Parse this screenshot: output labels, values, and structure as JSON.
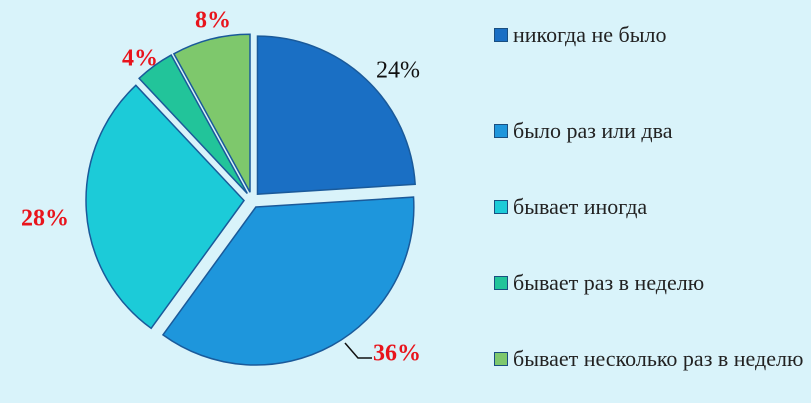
{
  "chart_data": {
    "type": "pie",
    "categories": [
      "никогда не было",
      "было раз или два",
      "бывает иногда",
      "бывает раз в неделю",
      "бывает несколько раз в неделю"
    ],
    "values": [
      24,
      36,
      28,
      4,
      8
    ],
    "value_labels": [
      "24%",
      "36%",
      "28%",
      "4%",
      "8%"
    ],
    "colors": [
      "#1a6fc4",
      "#1e96dc",
      "#1ccbd8",
      "#22c49a",
      "#7ec86c"
    ],
    "legend": "right"
  }
}
